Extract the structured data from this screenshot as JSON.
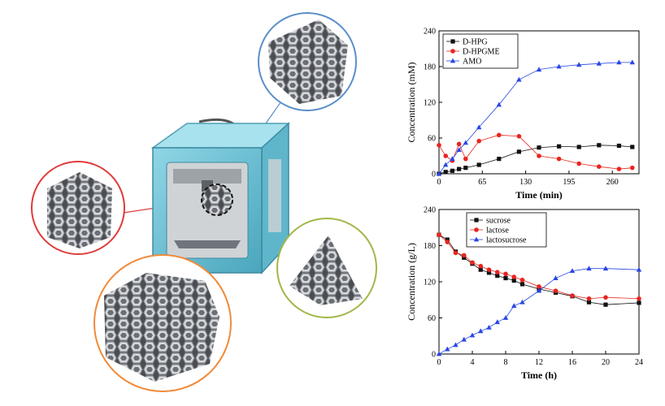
{
  "chart_data": [
    {
      "type": "line",
      "xlabel": "Time (min)",
      "ylabel": "Concentration (mM)",
      "xlim": [
        0,
        300
      ],
      "ylim": [
        0,
        240
      ],
      "xticks": [
        0,
        65,
        130,
        195,
        260
      ],
      "yticks": [
        0,
        60,
        120,
        180,
        240
      ],
      "grid": false,
      "legend_position": "top-left",
      "series": [
        {
          "name": "D-HPG",
          "marker": "square",
          "color": "#111111",
          "x": [
            0,
            10,
            20,
            30,
            40,
            60,
            90,
            120,
            150,
            180,
            210,
            240,
            270,
            290
          ],
          "y": [
            0,
            3,
            5,
            8,
            10,
            15,
            25,
            37,
            44,
            46,
            45,
            48,
            47,
            45
          ]
        },
        {
          "name": "D-HPGME",
          "marker": "circle",
          "color": "#e8251f",
          "x": [
            0,
            10,
            20,
            30,
            40,
            60,
            90,
            120,
            150,
            180,
            210,
            240,
            270,
            290
          ],
          "y": [
            48,
            30,
            22,
            50,
            25,
            55,
            65,
            63,
            30,
            25,
            17,
            12,
            8,
            10
          ]
        },
        {
          "name": "AMO",
          "marker": "triangle",
          "color": "#2846e6",
          "x": [
            0,
            10,
            20,
            30,
            40,
            60,
            90,
            120,
            150,
            180,
            210,
            240,
            270,
            290
          ],
          "y": [
            0,
            15,
            25,
            40,
            52,
            78,
            116,
            158,
            175,
            180,
            183,
            185,
            187,
            187
          ]
        }
      ]
    },
    {
      "type": "line",
      "xlabel": "Time (h)",
      "ylabel": "Concentration (g/L)",
      "xlim": [
        0,
        24
      ],
      "ylim": [
        0,
        240
      ],
      "xticks": [
        0,
        4,
        8,
        12,
        16,
        20,
        24
      ],
      "yticks": [
        0,
        60,
        120,
        180,
        240
      ],
      "grid": false,
      "legend_position": "top-center",
      "series": [
        {
          "name": "sucrose",
          "marker": "square",
          "color": "#111111",
          "x": [
            0,
            1,
            2,
            3,
            4,
            5,
            6,
            7,
            8,
            9,
            10,
            12,
            14,
            16,
            18,
            20,
            24
          ],
          "y": [
            198,
            190,
            170,
            160,
            150,
            140,
            135,
            130,
            126,
            122,
            116,
            108,
            102,
            96,
            86,
            82,
            85
          ]
        },
        {
          "name": "lactose",
          "marker": "circle",
          "color": "#e8251f",
          "x": [
            0,
            1,
            2,
            3,
            4,
            5,
            6,
            7,
            8,
            9,
            10,
            12,
            14,
            16,
            18,
            20,
            24
          ],
          "y": [
            198,
            186,
            168,
            164,
            152,
            146,
            140,
            136,
            133,
            128,
            123,
            112,
            105,
            97,
            92,
            94,
            92
          ]
        },
        {
          "name": "lactosucrose",
          "marker": "triangle",
          "color": "#2846e6",
          "x": [
            0,
            1,
            2,
            3,
            4,
            5,
            6,
            7,
            8,
            9,
            10,
            12,
            14,
            16,
            18,
            20,
            24
          ],
          "y": [
            0,
            8,
            15,
            24,
            31,
            38,
            44,
            53,
            60,
            80,
            86,
            105,
            126,
            138,
            142,
            142,
            140
          ]
        }
      ]
    }
  ]
}
